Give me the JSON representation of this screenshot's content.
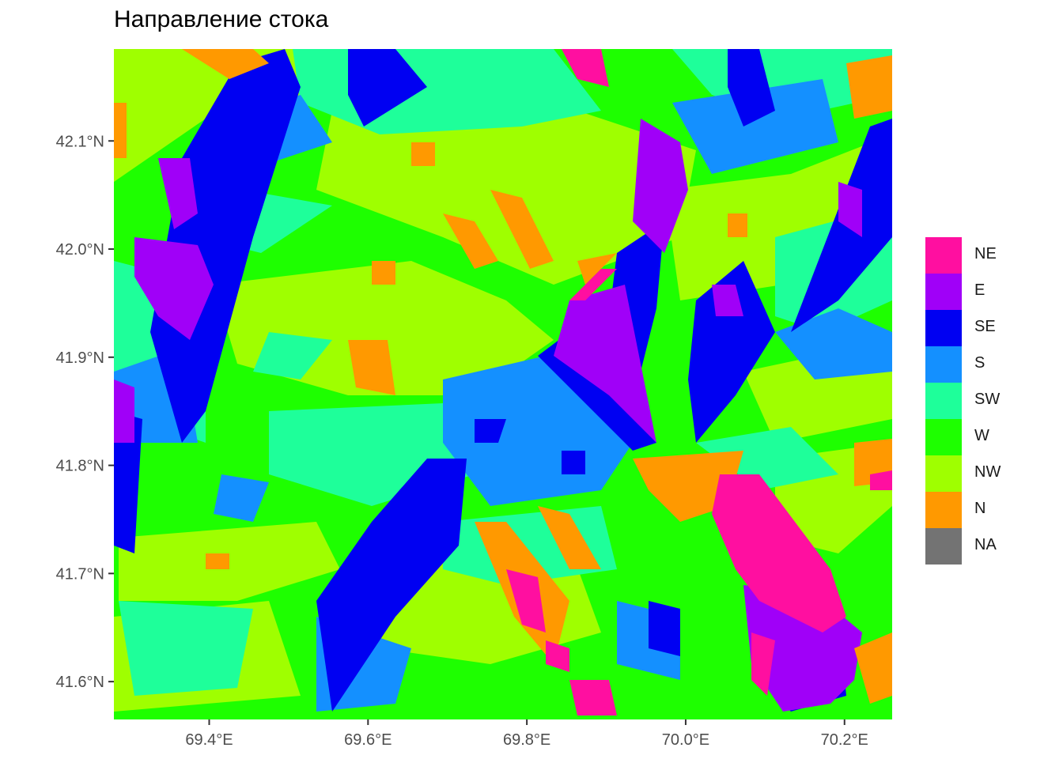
{
  "title": "Направление стока",
  "chart_data": {
    "type": "heatmap",
    "title": "Направление стока",
    "xlabel": "",
    "ylabel": "",
    "xlim": [
      69.28,
      70.26
    ],
    "ylim": [
      41.565,
      42.185
    ],
    "x_ticks": [
      69.4,
      69.6,
      69.8,
      70.0,
      70.2
    ],
    "x_tick_labels": [
      "69.4°E",
      "69.6°E",
      "69.8°E",
      "70.0°E",
      "70.2°E"
    ],
    "y_ticks": [
      41.6,
      41.7,
      41.8,
      41.9,
      42.0,
      42.1
    ],
    "y_tick_labels": [
      "41.6°N",
      "41.7°N",
      "41.8°N",
      "41.9°N",
      "42.0°N",
      "42.1°N"
    ],
    "legend_position": "right",
    "categories": [
      {
        "label": "NE",
        "color": "#ff0fa0"
      },
      {
        "label": "E",
        "color": "#a000f8"
      },
      {
        "label": "SE",
        "color": "#0000f2"
      },
      {
        "label": "S",
        "color": "#1490ff"
      },
      {
        "label": "SW",
        "color": "#1eff9a"
      },
      {
        "label": "W",
        "color": "#1eff00"
      },
      {
        "label": "NW",
        "color": "#9fff00"
      },
      {
        "label": "N",
        "color": "#ff9900"
      },
      {
        "label": "NA",
        "color": "#737373"
      }
    ],
    "grid": false
  }
}
